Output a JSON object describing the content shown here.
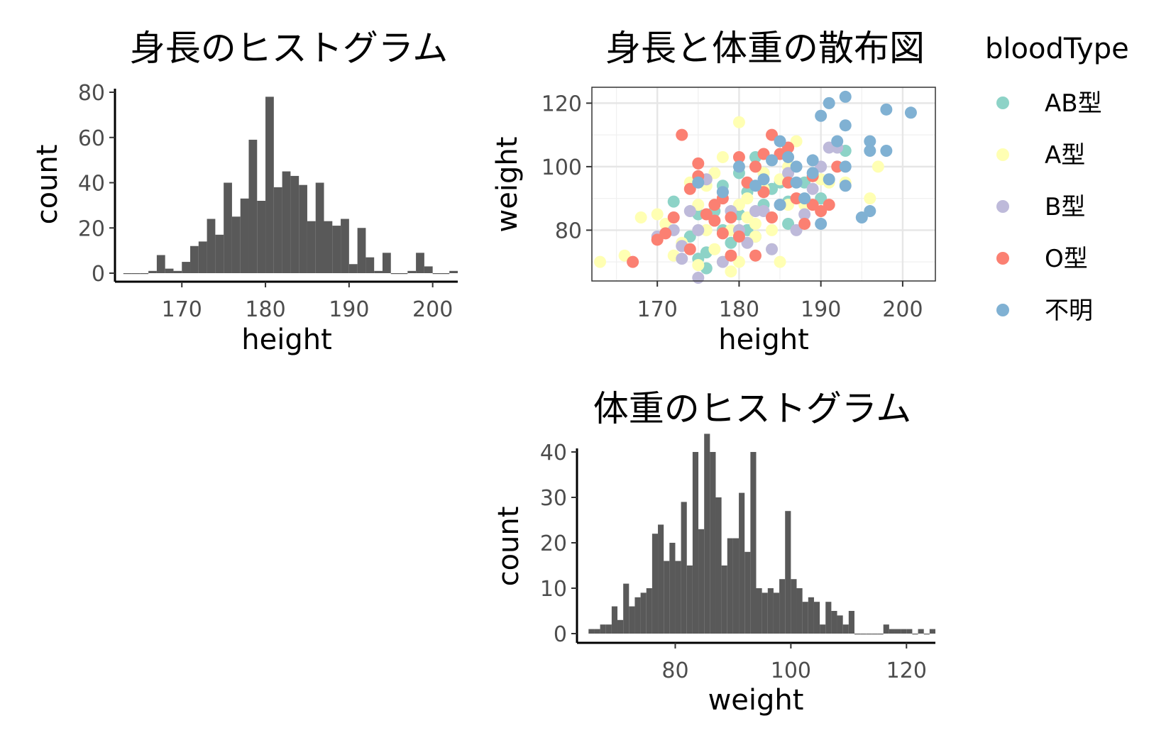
{
  "chart_data": [
    {
      "id": "height_hist",
      "type": "bar",
      "title": "身長のヒストグラム",
      "xlabel": "height",
      "ylabel": "count",
      "xlim": [
        162,
        203
      ],
      "ylim": [
        0,
        80
      ],
      "xticks": [
        170,
        180,
        190,
        200
      ],
      "yticks": [
        0,
        20,
        40,
        60,
        80
      ],
      "bin_width": 1,
      "bins_start": 163,
      "values": [
        0,
        0,
        0,
        1,
        8,
        2,
        1,
        5,
        12,
        14,
        24,
        17,
        40,
        25,
        33,
        59,
        32,
        78,
        38,
        45,
        43,
        39,
        23,
        40,
        23,
        21,
        24,
        4,
        20,
        7,
        1,
        9,
        0,
        0,
        1,
        9,
        3,
        0,
        0,
        1
      ]
    },
    {
      "id": "scatter",
      "type": "scatter",
      "title": "身長と体重の散布図",
      "xlabel": "height",
      "ylabel": "weight",
      "xlim": [
        162,
        204
      ],
      "ylim": [
        64,
        125
      ],
      "xticks": [
        170,
        180,
        190,
        200
      ],
      "yticks": [
        80,
        100,
        120
      ],
      "grid": true,
      "legend_title": "bloodType",
      "legend_position": "right",
      "series": [
        {
          "name": "AB型",
          "color": "#8dd3c7",
          "points": [
            [
              172,
              89
            ],
            [
              175,
              85
            ],
            [
              176,
              68
            ],
            [
              178,
              80
            ],
            [
              180,
              98
            ],
            [
              181,
              92
            ],
            [
              182,
              103
            ],
            [
              183,
              88
            ],
            [
              185,
              95
            ],
            [
              186,
              82
            ],
            [
              179,
              76
            ],
            [
              177,
              86
            ],
            [
              184,
              93
            ],
            [
              193,
              105
            ],
            [
              190,
              90
            ],
            [
              174,
              78
            ],
            [
              182,
              78
            ],
            [
              188,
              95
            ],
            [
              180,
              85
            ],
            [
              176,
              73
            ],
            [
              183,
              98
            ],
            [
              186,
              89
            ],
            [
              178,
              94
            ],
            [
              181,
              80
            ],
            [
              175,
              71
            ]
          ]
        },
        {
          "name": "A型",
          "color": "#ffffb3",
          "points": [
            [
              163,
              70
            ],
            [
              166,
              72
            ],
            [
              168,
              84
            ],
            [
              170,
              85
            ],
            [
              172,
              72
            ],
            [
              173,
              76
            ],
            [
              175,
              88
            ],
            [
              176,
              94
            ],
            [
              177,
              74
            ],
            [
              178,
              70
            ],
            [
              179,
              80
            ],
            [
              180,
              114
            ],
            [
              180,
              88
            ],
            [
              181,
              84
            ],
            [
              182,
              78
            ],
            [
              183,
              93
            ],
            [
              184,
              80
            ],
            [
              185,
              96
            ],
            [
              186,
              100
            ],
            [
              187,
              108
            ],
            [
              188,
              88
            ],
            [
              190,
              96
            ],
            [
              191,
              95
            ],
            [
              193,
              95
            ],
            [
              196,
              90
            ],
            [
              197,
              100
            ],
            [
              178,
              103
            ],
            [
              180,
              70
            ],
            [
              182,
              82
            ],
            [
              184,
              74
            ],
            [
              176,
              80
            ],
            [
              179,
              67
            ],
            [
              185,
              70
            ],
            [
              174,
              95
            ],
            [
              177,
              98
            ],
            [
              175,
              69
            ],
            [
              181,
              90
            ],
            [
              183,
              98
            ],
            [
              171,
              82
            ],
            [
              186,
              88
            ]
          ]
        },
        {
          "name": "B型",
          "color": "#bebada",
          "points": [
            [
              170,
              78
            ],
            [
              172,
              80
            ],
            [
              173,
              75
            ],
            [
              174,
              86
            ],
            [
              175,
              65
            ],
            [
              176,
              96
            ],
            [
              178,
              92
            ],
            [
              180,
              80
            ],
            [
              182,
              86
            ],
            [
              184,
              74
            ],
            [
              185,
              88
            ],
            [
              186,
              98
            ],
            [
              188,
              85
            ],
            [
              190,
              100
            ],
            [
              191,
              106
            ],
            [
              192,
              106
            ],
            [
              187,
              80
            ],
            [
              183,
              86
            ],
            [
              179,
              86
            ],
            [
              177,
              83
            ],
            [
              181,
              76
            ],
            [
              189,
              93
            ],
            [
              178,
              70
            ],
            [
              175,
              80
            ],
            [
              173,
              71
            ]
          ]
        },
        {
          "name": "O型",
          "color": "#fb8072",
          "points": [
            [
              167,
              70
            ],
            [
              170,
              77
            ],
            [
              172,
              84
            ],
            [
              173,
              110
            ],
            [
              174,
              74
            ],
            [
              175,
              101
            ],
            [
              176,
              85
            ],
            [
              177,
              83
            ],
            [
              178,
              90
            ],
            [
              179,
              84
            ],
            [
              180,
              103
            ],
            [
              181,
              95
            ],
            [
              182,
              100
            ],
            [
              183,
              92
            ],
            [
              184,
              110
            ],
            [
              185,
              104
            ],
            [
              186,
              106
            ],
            [
              187,
              90
            ],
            [
              188,
              82
            ],
            [
              189,
              88
            ],
            [
              190,
              86
            ],
            [
              191,
              88
            ],
            [
              192,
              100
            ],
            [
              180,
              78
            ],
            [
              182,
              72
            ],
            [
              184,
              84
            ],
            [
              186,
              95
            ],
            [
              178,
              79
            ],
            [
              175,
              97
            ],
            [
              171,
              79
            ],
            [
              177,
              88
            ],
            [
              183,
              104
            ],
            [
              189,
              97
            ],
            [
              174,
              93
            ],
            [
              179,
              72
            ]
          ]
        },
        {
          "name": "不明",
          "color": "#80b1d3",
          "points": [
            [
              175,
              95
            ],
            [
              178,
              92
            ],
            [
              180,
              100
            ],
            [
              182,
              94
            ],
            [
              184,
              102
            ],
            [
              185,
              108
            ],
            [
              186,
              103
            ],
            [
              187,
              100
            ],
            [
              188,
              90
            ],
            [
              189,
              102
            ],
            [
              190,
              82
            ],
            [
              190,
              116
            ],
            [
              191,
              120
            ],
            [
              192,
              108
            ],
            [
              193,
              122
            ],
            [
              193,
              113
            ],
            [
              193,
              100
            ],
            [
              193,
              94
            ],
            [
              195,
              84
            ],
            [
              196,
              86
            ],
            [
              196,
              105
            ],
            [
              196,
              108
            ],
            [
              198,
              105
            ],
            [
              198,
              118
            ],
            [
              201,
              117
            ],
            [
              185,
              88
            ],
            [
              187,
              95
            ],
            [
              189,
              98
            ],
            [
              191,
              96
            ],
            [
              183,
              96
            ]
          ]
        }
      ]
    },
    {
      "id": "weight_hist",
      "type": "bar",
      "title": "体重のヒストグラム",
      "xlabel": "weight",
      "ylabel": "count",
      "xlim": [
        63,
        125
      ],
      "ylim": [
        0,
        40
      ],
      "xticks": [
        80,
        100,
        120
      ],
      "yticks": [
        0,
        10,
        20,
        30,
        40
      ],
      "bin_width": 1,
      "bins_start": 65,
      "values": [
        1,
        1,
        2,
        2,
        6,
        3,
        11,
        6,
        8,
        9,
        10,
        22,
        24,
        16,
        20,
        16,
        29,
        15,
        40,
        23,
        44,
        40,
        30,
        15,
        21,
        21,
        31,
        18,
        40,
        10,
        9,
        10,
        9,
        12,
        27,
        12,
        10,
        7,
        8,
        7,
        2,
        7,
        5,
        4,
        2,
        5,
        0,
        0,
        0,
        0,
        0,
        2,
        1,
        1,
        1,
        1,
        0,
        1,
        0,
        1
      ]
    }
  ]
}
